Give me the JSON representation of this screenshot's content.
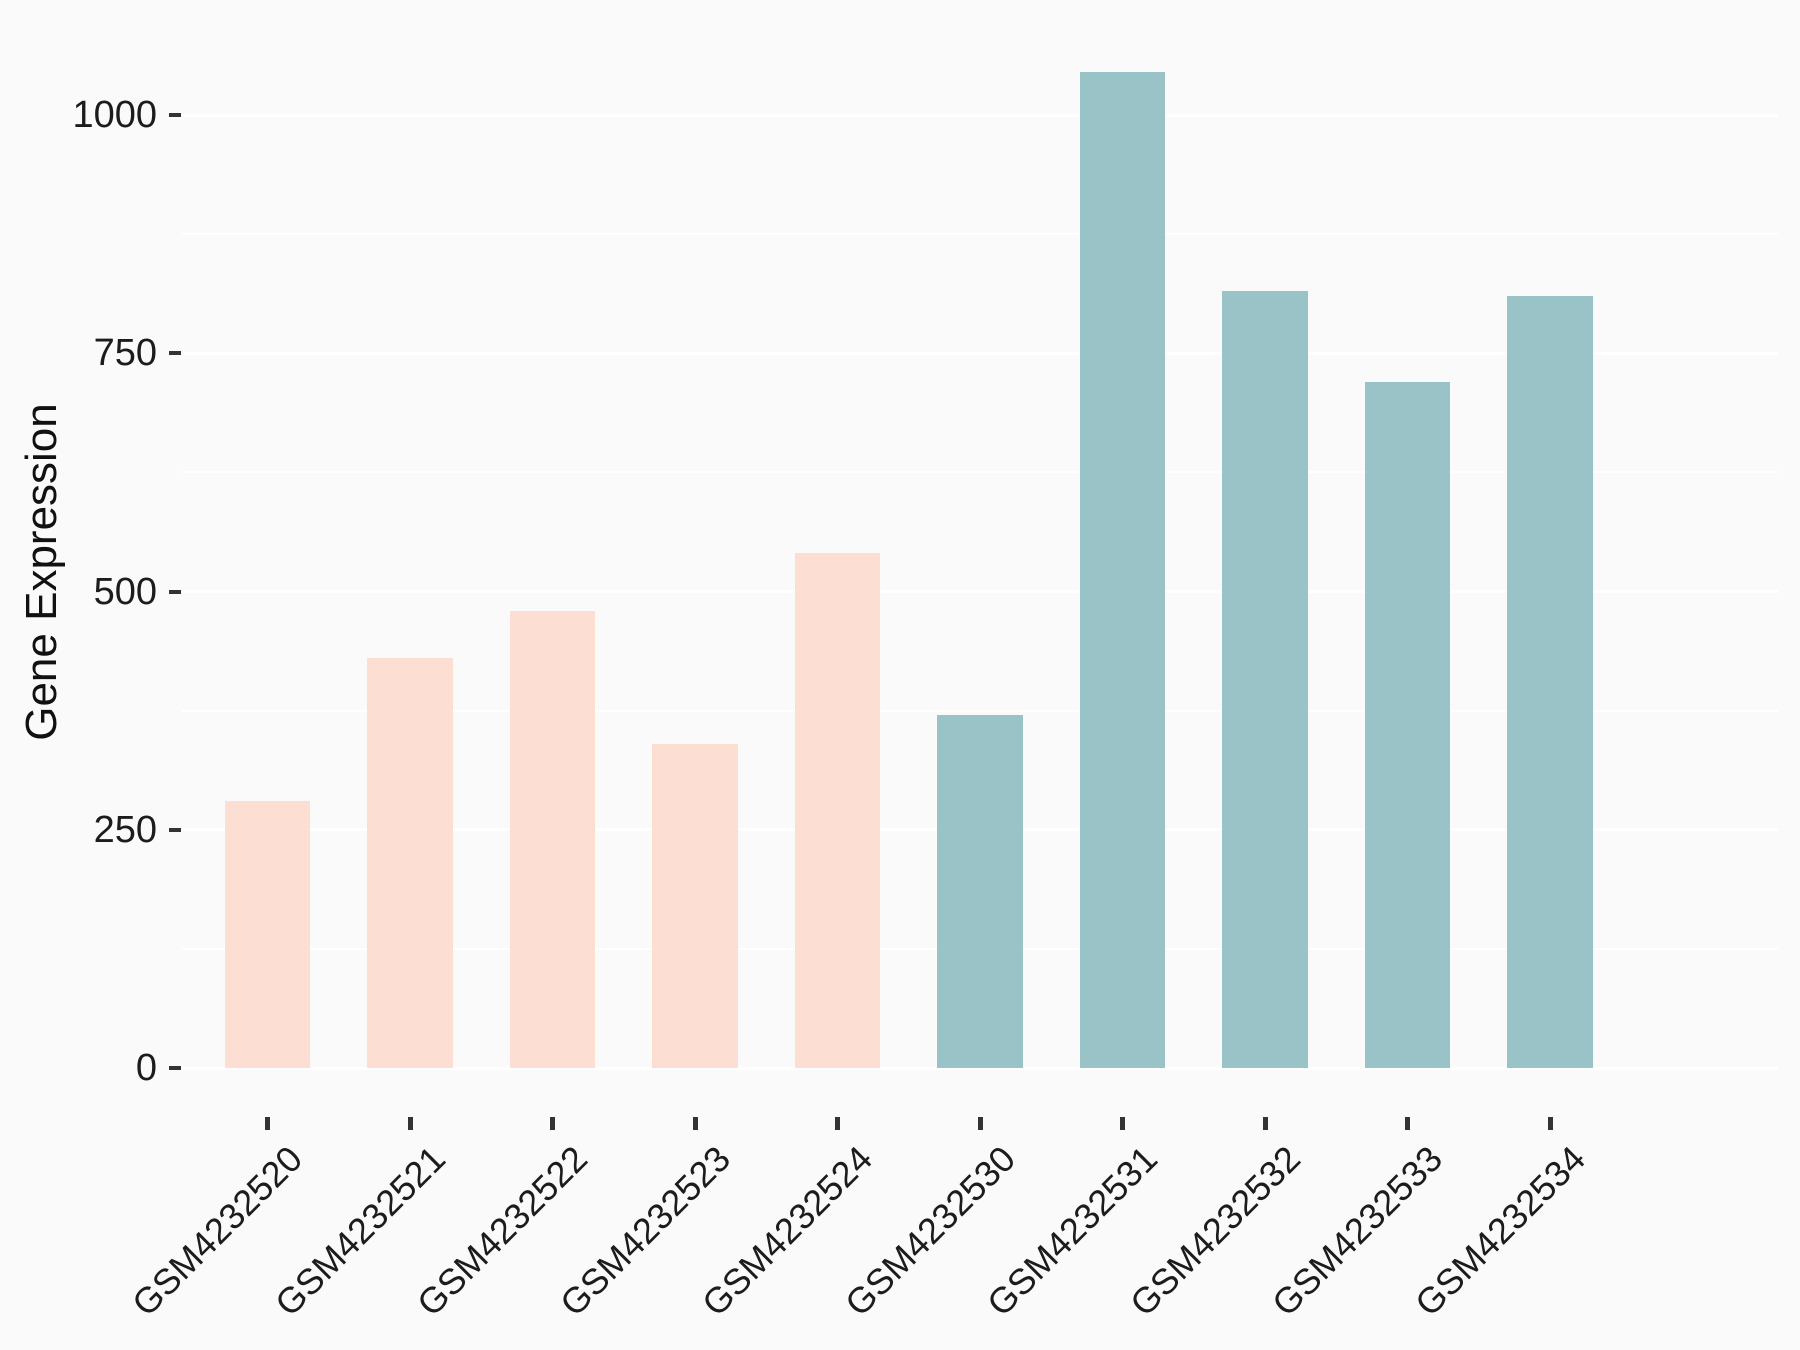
{
  "chart_data": {
    "type": "bar",
    "title": "",
    "xlabel": "",
    "ylabel": "Gene Expression",
    "categories": [
      "GSM4232520",
      "GSM4232521",
      "GSM4232522",
      "GSM4232523",
      "GSM4232524",
      "GSM4232530",
      "GSM4232531",
      "GSM4232532",
      "GSM4232533",
      "GSM4232534"
    ],
    "values": [
      280,
      430,
      480,
      340,
      540,
      370,
      1045,
      815,
      720,
      810
    ],
    "bar_colors": [
      "#FDDED3",
      "#FDDED3",
      "#FDDED3",
      "#FDDED3",
      "#FDDED3",
      "#9AC3C8",
      "#9AC3C8",
      "#9AC3C8",
      "#9AC3C8",
      "#9AC3C8"
    ],
    "group_colors": {
      "pink_group": "#FDDED3",
      "teal_group": "#9AC3C8"
    },
    "ylim": [
      -55,
      1100
    ],
    "yticks_major": [
      0,
      250,
      500,
      750,
      1000
    ],
    "yticks_minor": [
      125,
      375,
      625,
      875
    ],
    "ytick_labels": [
      "0",
      "250",
      "500",
      "750",
      "1000"
    ],
    "x_tick_rotation_deg": 45,
    "grid": "major and minor horizontal white gridlines on light gray panel",
    "legend": "none"
  },
  "style": {
    "background_color": "#FAFAFA",
    "gridline_color": "#FFFFFF",
    "tick_mark_color": "#333333",
    "axis_text_color": "#1C1C1C",
    "axis_title_color": "#111111"
  }
}
